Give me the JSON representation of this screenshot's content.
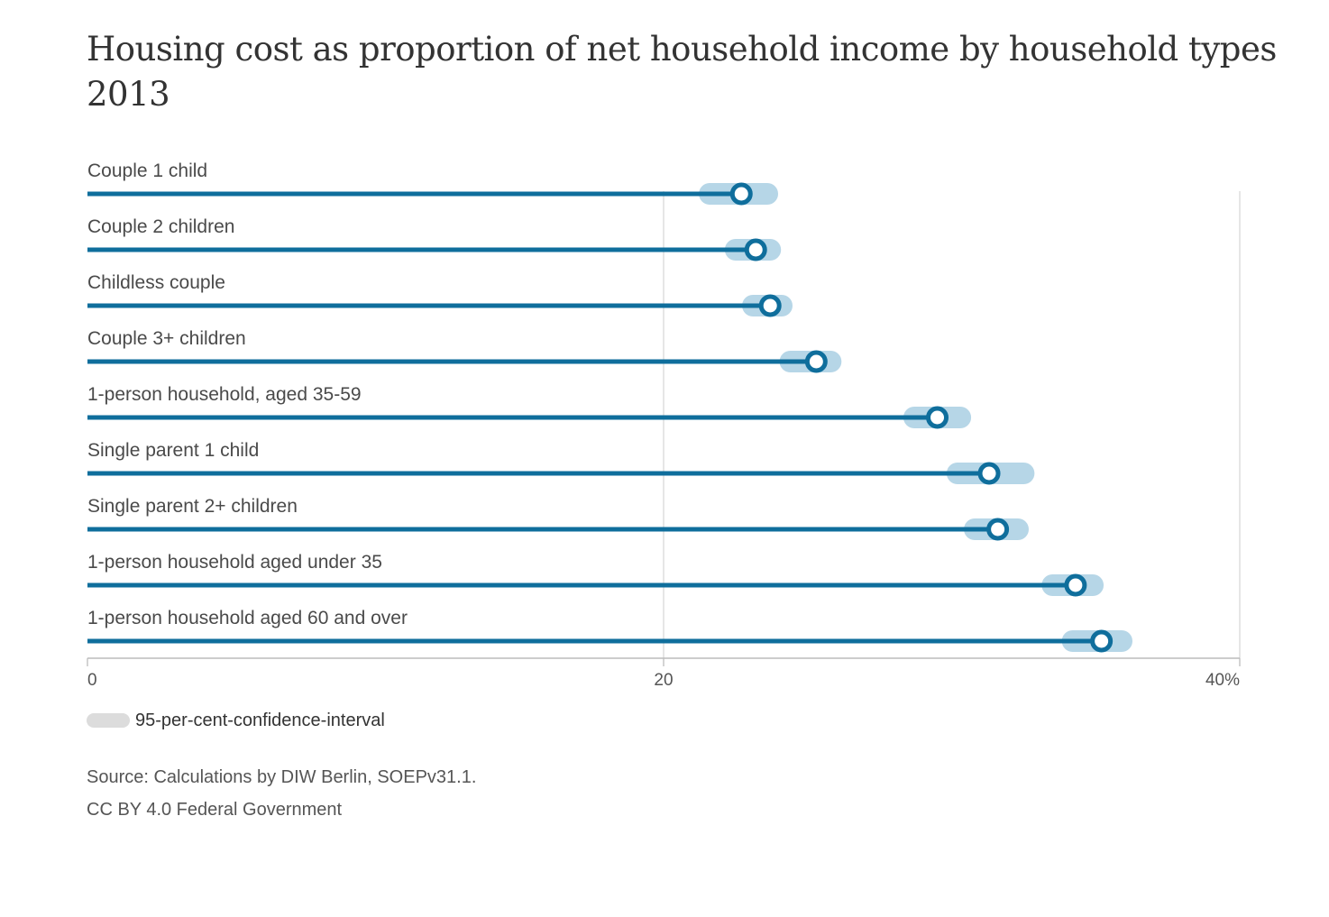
{
  "title": "Housing cost as proportion of net household income by household types 2013",
  "legend": {
    "ci_label": "95-per-cent-confidence-interval"
  },
  "source": {
    "line1": "Source: Calculations by DIW Berlin, SOEPv31.1.",
    "line2": "CC BY 4.0 Federal Government"
  },
  "colors": {
    "bar": "#0f6e9c",
    "ci": "#b6d6e7",
    "grid": "#dddddd",
    "legend_swatch": "#dcdcdc"
  },
  "chart_data": {
    "type": "bar",
    "orientation": "horizontal",
    "categories": [
      "Couple 1 child",
      "Couple 2 children",
      "Childless couple",
      "Couple 3+ children",
      "1-person household, aged 35-59",
      "Single parent 1 child",
      "Single parent 2+ children",
      "1-person household aged under 35",
      "1-person household aged 60 and over"
    ],
    "values": [
      22.7,
      23.2,
      23.7,
      25.3,
      29.5,
      31.3,
      31.6,
      34.3,
      35.2
    ],
    "ci_low": [
      21.6,
      22.5,
      23.1,
      24.4,
      28.7,
      30.2,
      30.8,
      33.5,
      34.2
    ],
    "ci_high": [
      23.6,
      23.7,
      24.1,
      25.8,
      30.3,
      32.5,
      32.3,
      34.9,
      35.9
    ],
    "x_ticks": [
      "0",
      "20",
      "40%"
    ],
    "xlim": [
      0,
      40
    ],
    "grid": true
  }
}
